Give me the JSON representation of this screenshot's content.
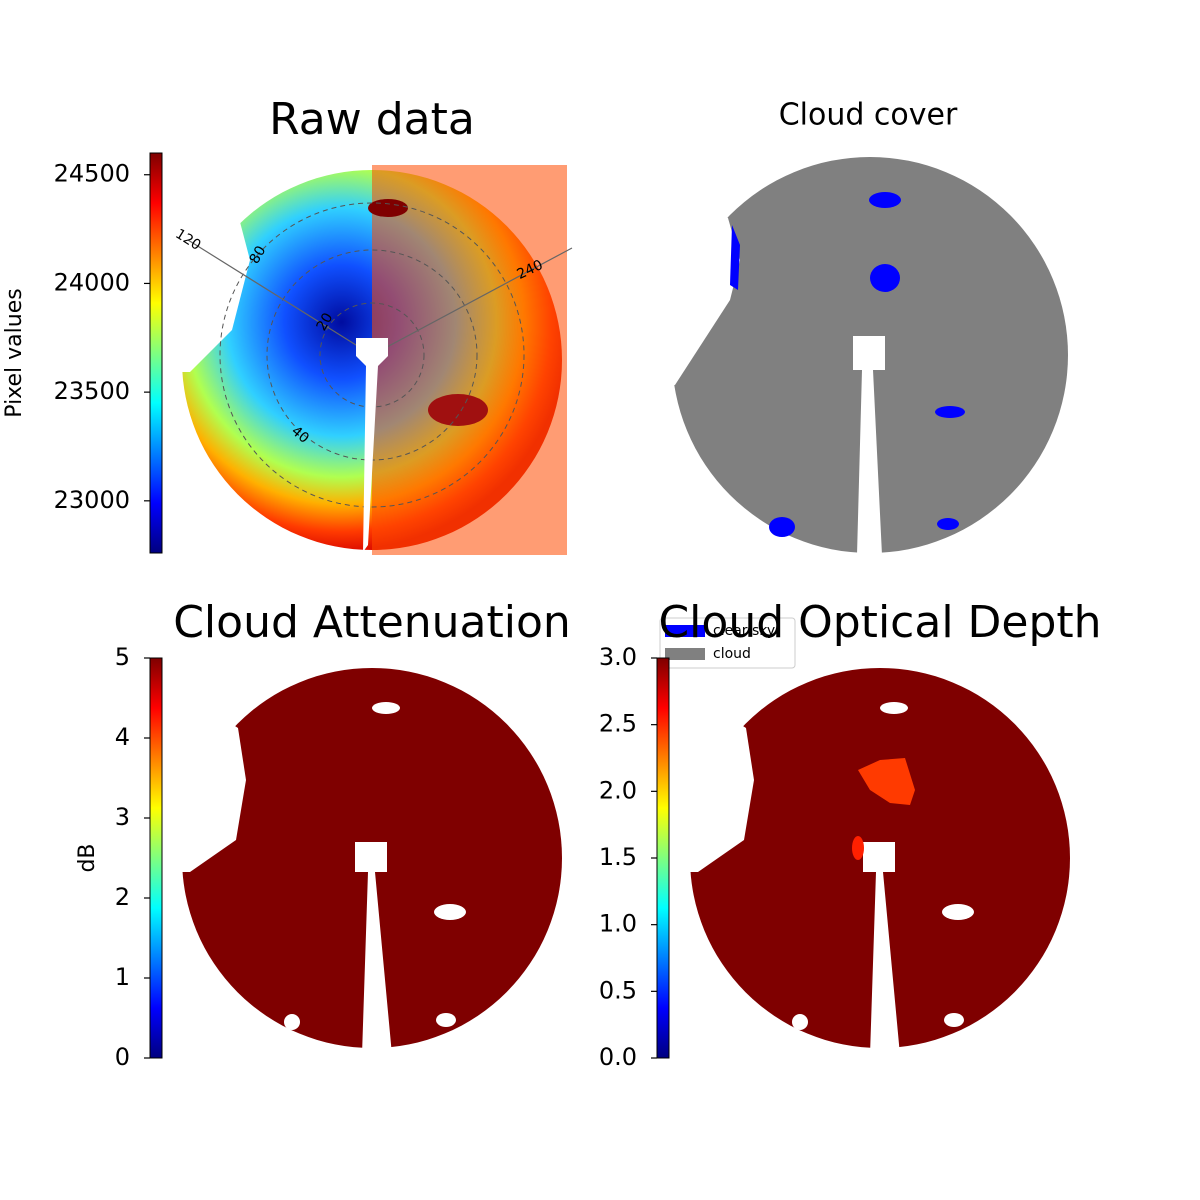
{
  "chart_data": [
    {
      "type": "image",
      "title": "Raw data",
      "ylabel": "Pixel values",
      "ylim": [
        22760,
        24600
      ],
      "yticks": [
        23000,
        23500,
        24000,
        24500
      ],
      "annotations": [
        "120",
        "80",
        "20",
        "40",
        "240"
      ]
    },
    {
      "type": "image",
      "title": "Cloud cover",
      "series": [
        {
          "name": "clear sky",
          "color": "#0000ff"
        },
        {
          "name": "cloud",
          "color": "#808080"
        }
      ]
    },
    {
      "type": "image",
      "title": "Cloud Attenuation",
      "ylabel": "dB",
      "ylim": [
        0,
        5
      ],
      "yticks": [
        0,
        1,
        2,
        3,
        4,
        5
      ]
    },
    {
      "type": "image",
      "title": "Cloud Optical Depth",
      "ylim": [
        0,
        3
      ],
      "yticks": [
        {
          "value": 0,
          "label": "0.0"
        },
        {
          "value": 0.5,
          "label": "0.5"
        },
        {
          "value": 1,
          "label": "1.0"
        },
        {
          "value": 1.5,
          "label": "1.5"
        },
        {
          "value": 2,
          "label": "2.0"
        },
        {
          "value": 2.5,
          "label": "2.5"
        },
        {
          "value": 3,
          "label": "3.0"
        }
      ]
    }
  ]
}
